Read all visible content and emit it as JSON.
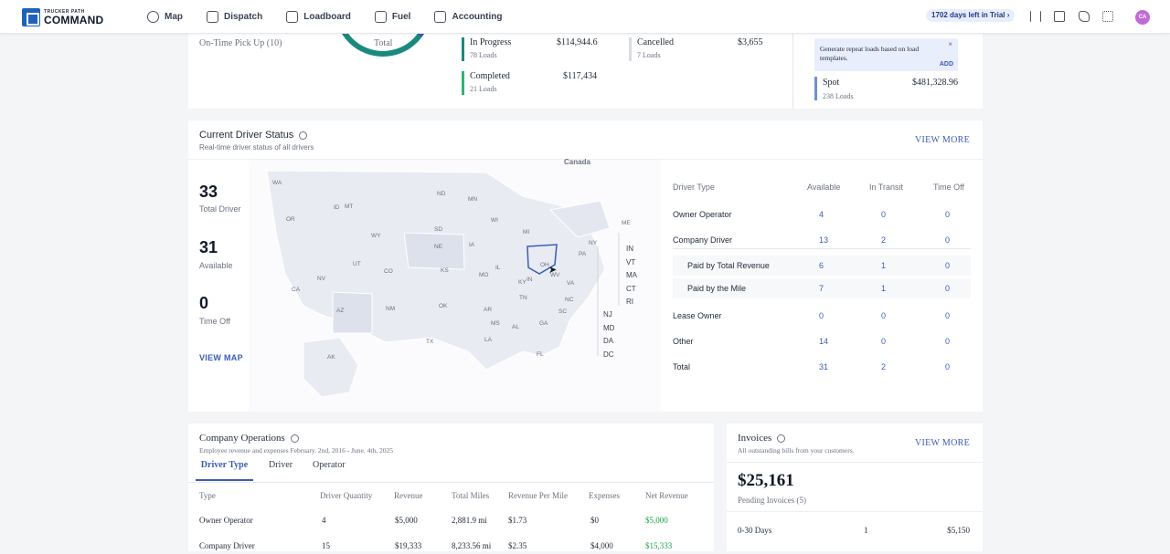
{
  "header": {
    "logo_small": "TRUCKER PATH",
    "logo_big": "COMMAND",
    "nav": [
      {
        "label": "Map",
        "icon": "globe-icon"
      },
      {
        "label": "Dispatch",
        "icon": "dispatch-icon"
      },
      {
        "label": "Loadboard",
        "icon": "loadboard-icon"
      },
      {
        "label": "Fuel",
        "icon": "fuel-icon"
      },
      {
        "label": "Accounting",
        "icon": "wallet-icon"
      }
    ],
    "trial": "1702 days left in Trial",
    "avatar": "CA"
  },
  "loads": {
    "ontime": "On-Time Pick Up (10)",
    "donut_label": "Total",
    "in_progress": {
      "label": "In Progress",
      "amount": "$114,944.6",
      "count": "78 Loads"
    },
    "completed": {
      "label": "Completed",
      "amount": "$117,434",
      "count": "21 Loads"
    },
    "cancelled": {
      "label": "Cancelled",
      "amount": "$3,655",
      "count": "7 Loads"
    },
    "tip": "Generate repeat loads based on load templates.",
    "tip_action": "ADD",
    "spot": {
      "label": "Spot",
      "amount": "$481,328.96",
      "count": "238 Loads"
    }
  },
  "driver_status": {
    "title": "Current Driver Status",
    "subtitle": "Real-time driver status of all drivers",
    "view_more": "VIEW MORE",
    "total": "33",
    "total_label": "Total Driver",
    "available": "31",
    "available_label": "Available",
    "timeoff": "0",
    "timeoff_label": "Time Off",
    "view_map": "VIEW MAP",
    "map_label_canada": "Canada",
    "states": [
      "WA",
      "OR",
      "CA",
      "NV",
      "ID",
      "MT",
      "WY",
      "UT",
      "AZ",
      "CO",
      "NM",
      "ND",
      "SD",
      "NE",
      "KS",
      "OK",
      "TX",
      "MN",
      "IA",
      "MO",
      "AR",
      "LA",
      "WI",
      "IL",
      "MI",
      "IN",
      "OH",
      "KY",
      "TN",
      "MS",
      "AL",
      "GA",
      "FL",
      "SC",
      "NC",
      "VA",
      "WV",
      "PA",
      "NY",
      "ME",
      "AK"
    ],
    "side_states_a": [
      "IN",
      "VT",
      "MA",
      "CT",
      "RI"
    ],
    "side_states_b": [
      "NJ",
      "MD",
      "DA",
      "DC"
    ],
    "columns": [
      "Driver Type",
      "Available",
      "In Transit",
      "Time Off"
    ],
    "rows": [
      {
        "type": "Owner Operator",
        "available": "4",
        "transit": "0",
        "off": "0"
      },
      {
        "type": "Company Driver",
        "available": "13",
        "transit": "2",
        "off": "0"
      },
      {
        "type": "Paid by Total Revenue",
        "available": "6",
        "transit": "1",
        "off": "0"
      },
      {
        "type": "Paid by the Mile",
        "available": "7",
        "transit": "1",
        "off": "0"
      },
      {
        "type": "Lease Owner",
        "available": "0",
        "transit": "0",
        "off": "0"
      },
      {
        "type": "Other",
        "available": "14",
        "transit": "0",
        "off": "0"
      },
      {
        "type": "Total",
        "available": "31",
        "transit": "2",
        "off": "0"
      }
    ]
  },
  "operations": {
    "title": "Company Operations",
    "subtitle": "Employee revenue and expenses February. 2nd, 2016 - June. 4th, 2025",
    "tabs": [
      "Driver Type",
      "Driver",
      "Operator"
    ],
    "columns": [
      "Type",
      "Driver Quantity",
      "Revenue",
      "Total Miles",
      "Revenue Per Mile",
      "Expenses",
      "Net Revenue"
    ],
    "rows": [
      [
        "Owner Operator",
        "4",
        "$5,000",
        "2,881.9 mi",
        "$1.73",
        "$0",
        "$5,000"
      ],
      [
        "Company Driver",
        "15",
        "$19,333",
        "8,233.56 mi",
        "$2.35",
        "$4,000",
        "$15,333"
      ]
    ]
  },
  "invoices": {
    "title": "Invoices",
    "subtitle": "All outstanding bills from your customers.",
    "view_more": "VIEW MORE",
    "amount": "$25,161",
    "pending": "Pending Invoices (5)",
    "row": {
      "label": "0-30 Days",
      "count": "1",
      "amount": "$5,150"
    }
  },
  "colors": {
    "accent": "#3b5bb8",
    "teal": "#1a8a7e",
    "green": "#2bb673",
    "map_fill": "#e9ebf3"
  }
}
